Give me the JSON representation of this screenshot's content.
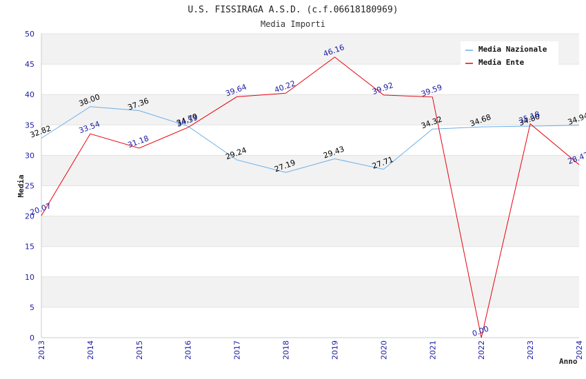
{
  "chart_data": {
    "type": "line",
    "title": "U.S. FISSIRAGA A.S.D. (c.f.06618180969)",
    "subtitle": "Media Importi",
    "xlabel": "Anno",
    "ylabel": "Media",
    "ylim": [
      0,
      50
    ],
    "yticks": [
      0,
      5,
      10,
      15,
      20,
      25,
      30,
      35,
      40,
      45,
      50
    ],
    "categories": [
      "2013",
      "2014",
      "2015",
      "2016",
      "2017",
      "2018",
      "2019",
      "2020",
      "2021",
      "2022",
      "2023",
      "2024"
    ],
    "legend_position": "top-right",
    "series": [
      {
        "name": "Media Nazionale",
        "color": "#6aaee8",
        "label_color": "#000000",
        "values": [
          32.82,
          38.0,
          37.36,
          34.79,
          29.24,
          27.19,
          29.43,
          27.71,
          34.32,
          34.68,
          34.8,
          34.94
        ],
        "labels": [
          "32.82",
          "38.00",
          "37.36",
          "34.79",
          "29.24",
          "27.19",
          "29.43",
          "27.71",
          "34.32",
          "34.68",
          "34.80",
          "34.94"
        ]
      },
      {
        "name": "Media Ente",
        "color": "#e8000b",
        "label_color": "#1a1aa6",
        "values": [
          20.07,
          33.54,
          31.18,
          34.59,
          39.64,
          40.22,
          46.16,
          39.92,
          39.59,
          0.0,
          35.18,
          28.47
        ],
        "labels": [
          "20.07",
          "33.54",
          "31.18",
          "34.59",
          "39.64",
          "40.22",
          "46.16",
          "39.92",
          "39.59",
          "0.00",
          "35.18",
          "28.47"
        ]
      }
    ]
  }
}
